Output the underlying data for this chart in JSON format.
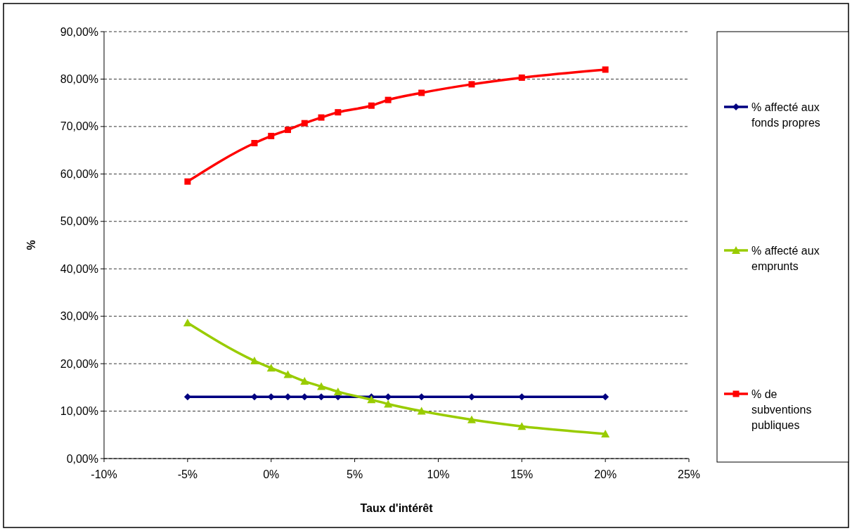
{
  "chart_data": {
    "type": "line",
    "xlabel": "Taux d'intérêt",
    "ylabel": "%",
    "x": [
      -5,
      -1,
      0,
      1,
      2,
      3,
      4,
      6,
      7,
      9,
      12,
      15,
      20
    ],
    "series": [
      {
        "name": "% affecté aux fonds propres",
        "color": "#000080",
        "marker": "diamond",
        "values": [
          13,
          13,
          13,
          13,
          13,
          13,
          13,
          13,
          13,
          13,
          13,
          13,
          13
        ]
      },
      {
        "name": "% affecté aux emprunts",
        "color": "#99cc00",
        "marker": "triangle",
        "values": [
          28.6,
          20.6,
          19.1,
          17.7,
          16.3,
          15.2,
          14.1,
          12.4,
          11.5,
          10,
          8.2,
          6.8,
          5.2
        ]
      },
      {
        "name": "% de subventions publiques",
        "color": "#ff0000",
        "marker": "square",
        "values": [
          58.4,
          66.5,
          68,
          69.3,
          70.7,
          71.9,
          73,
          74.4,
          75.6,
          77.1,
          78.9,
          80.3,
          82
        ]
      }
    ],
    "xlim": [
      -10,
      25
    ],
    "xticks": [
      {
        "value": -10,
        "label": "-10%"
      },
      {
        "value": -5,
        "label": "-5%"
      },
      {
        "value": 0,
        "label": "0%"
      },
      {
        "value": 5,
        "label": "5%"
      },
      {
        "value": 10,
        "label": "10%"
      },
      {
        "value": 15,
        "label": "15%"
      },
      {
        "value": 20,
        "label": "20%"
      },
      {
        "value": 25,
        "label": "25%"
      }
    ],
    "ylim": [
      0,
      90
    ],
    "yticks": [
      {
        "value": 0,
        "label": "0,00%"
      },
      {
        "value": 10,
        "label": "10,00%"
      },
      {
        "value": 20,
        "label": "20,00%"
      },
      {
        "value": 30,
        "label": "30,00%"
      },
      {
        "value": 40,
        "label": "40,00%"
      },
      {
        "value": 50,
        "label": "50,00%"
      },
      {
        "value": 60,
        "label": "60,00%"
      },
      {
        "value": 70,
        "label": "70,00%"
      },
      {
        "value": 80,
        "label": "80,00%"
      },
      {
        "value": 90,
        "label": "90,00%"
      }
    ],
    "grid": "y",
    "legend": "right",
    "line_style": "solid"
  }
}
